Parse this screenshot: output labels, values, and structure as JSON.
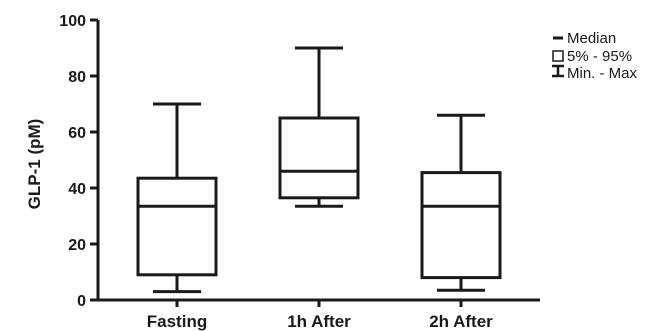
{
  "chart_data": {
    "type": "box",
    "ylabel": "GLP-1 (pM)",
    "xlabel": "",
    "title": "",
    "ylim": [
      0,
      100
    ],
    "yticks": [
      0,
      20,
      40,
      60,
      80,
      100
    ],
    "grid": false,
    "legend_position": "top-right",
    "categories": [
      "Fasting",
      "1h After",
      "2h After"
    ],
    "boxes": [
      {
        "category": "Fasting",
        "min": 3,
        "q1": 9,
        "median": 33.5,
        "q3": 43.5,
        "max": 70
      },
      {
        "category": "1h After",
        "min": 33.5,
        "q1": 36.5,
        "median": 46,
        "q3": 65,
        "max": 90
      },
      {
        "category": "2h After",
        "min": 3.5,
        "q1": 8,
        "median": 33.5,
        "q3": 45.5,
        "max": 66
      }
    ],
    "legend": {
      "median": "Median",
      "box": "5% - 95%",
      "whisker": "Min. - Max"
    },
    "colors": {
      "stroke": "#1a1a1a",
      "fill": "#ffffff"
    }
  }
}
